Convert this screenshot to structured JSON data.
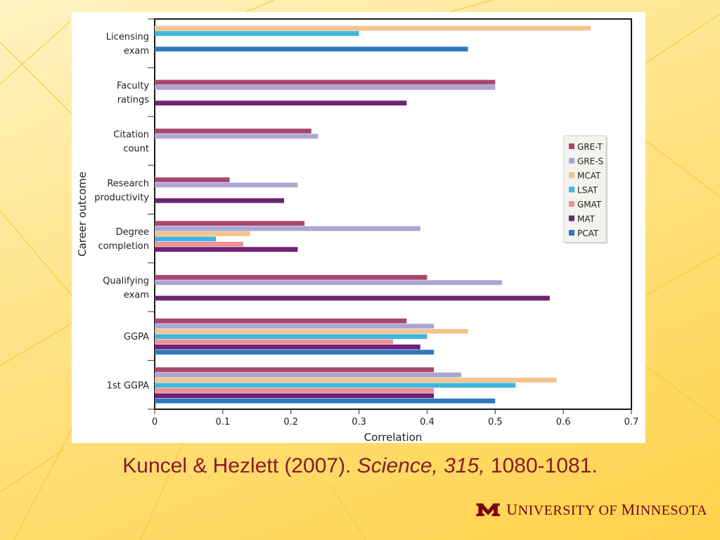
{
  "citation": {
    "authors": "Kuncel & Hezlett (2007).",
    "journal": "Science, 315,",
    "pages": "1080-1081."
  },
  "logo": {
    "mark": "M",
    "text_prefix": "U",
    "text_mid": "NIVERSITY OF ",
    "text_prefix2": "M",
    "text_end": "INNESOTA"
  },
  "colors": {
    "GRE-T": "#a8476d",
    "GRE-S": "#aaa6d6",
    "MCAT": "#f4c48c",
    "LSAT": "#3fb6de",
    "GMAT": "#ec9393",
    "MAT": "#6e2376",
    "PCAT": "#2f77bf",
    "umn_maroon": "#7a0019",
    "citation_red": "#8a1a2b"
  },
  "chart_data": {
    "type": "bar",
    "orientation": "horizontal",
    "xlabel": "Correlation",
    "ylabel": "Career outcome",
    "xlim": [
      0,
      0.7
    ],
    "xticks": [
      "0",
      "0.1",
      "0.2",
      "0.3",
      "0.4",
      "0.5",
      "0.6",
      "0.7"
    ],
    "legend_position": "right",
    "series_names": [
      "GRE-T",
      "GRE-S",
      "MCAT",
      "LSAT",
      "GMAT",
      "MAT",
      "PCAT"
    ],
    "categories": [
      {
        "label": [
          "Licensing",
          "exam"
        ],
        "bars": [
          {
            "series": "MCAT",
            "value": 0.64
          },
          {
            "series": "LSAT",
            "value": 0.3
          },
          {
            "series": "PCAT",
            "value": 0.46
          }
        ]
      },
      {
        "label": [
          "Faculty",
          "ratings"
        ],
        "bars": [
          {
            "series": "GRE-T",
            "value": 0.5
          },
          {
            "series": "GRE-S",
            "value": 0.5
          },
          {
            "series": "MAT",
            "value": 0.37
          }
        ]
      },
      {
        "label": [
          "Citation",
          "count"
        ],
        "bars": [
          {
            "series": "GRE-T",
            "value": 0.23
          },
          {
            "series": "GRE-S",
            "value": 0.24
          }
        ]
      },
      {
        "label": [
          "Research",
          "productivity"
        ],
        "bars": [
          {
            "series": "GRE-T",
            "value": 0.11
          },
          {
            "series": "GRE-S",
            "value": 0.21
          },
          {
            "series": "MAT",
            "value": 0.19
          }
        ]
      },
      {
        "label": [
          "Degree",
          "completion"
        ],
        "bars": [
          {
            "series": "GRE-T",
            "value": 0.22
          },
          {
            "series": "GRE-S",
            "value": 0.39
          },
          {
            "series": "MCAT",
            "value": 0.14
          },
          {
            "series": "LSAT",
            "value": 0.09
          },
          {
            "series": "GMAT",
            "value": 0.13
          },
          {
            "series": "MAT",
            "value": 0.21
          }
        ]
      },
      {
        "label": [
          "Qualifying",
          "exam"
        ],
        "bars": [
          {
            "series": "GRE-T",
            "value": 0.4
          },
          {
            "series": "GRE-S",
            "value": 0.51
          },
          {
            "series": "MAT",
            "value": 0.58
          }
        ]
      },
      {
        "label": [
          "GGPA"
        ],
        "bars": [
          {
            "series": "GRE-T",
            "value": 0.37
          },
          {
            "series": "GRE-S",
            "value": 0.41
          },
          {
            "series": "MCAT",
            "value": 0.46
          },
          {
            "series": "LSAT",
            "value": 0.4
          },
          {
            "series": "GMAT",
            "value": 0.35
          },
          {
            "series": "MAT",
            "value": 0.39
          },
          {
            "series": "PCAT",
            "value": 0.41
          }
        ]
      },
      {
        "label": [
          "1st GGPA"
        ],
        "bars": [
          {
            "series": "GRE-T",
            "value": 0.41
          },
          {
            "series": "GRE-S",
            "value": 0.45
          },
          {
            "series": "MCAT",
            "value": 0.59
          },
          {
            "series": "LSAT",
            "value": 0.53
          },
          {
            "series": "GMAT",
            "value": 0.41
          },
          {
            "series": "MAT",
            "value": 0.41
          },
          {
            "series": "PCAT",
            "value": 0.5
          }
        ]
      }
    ]
  }
}
